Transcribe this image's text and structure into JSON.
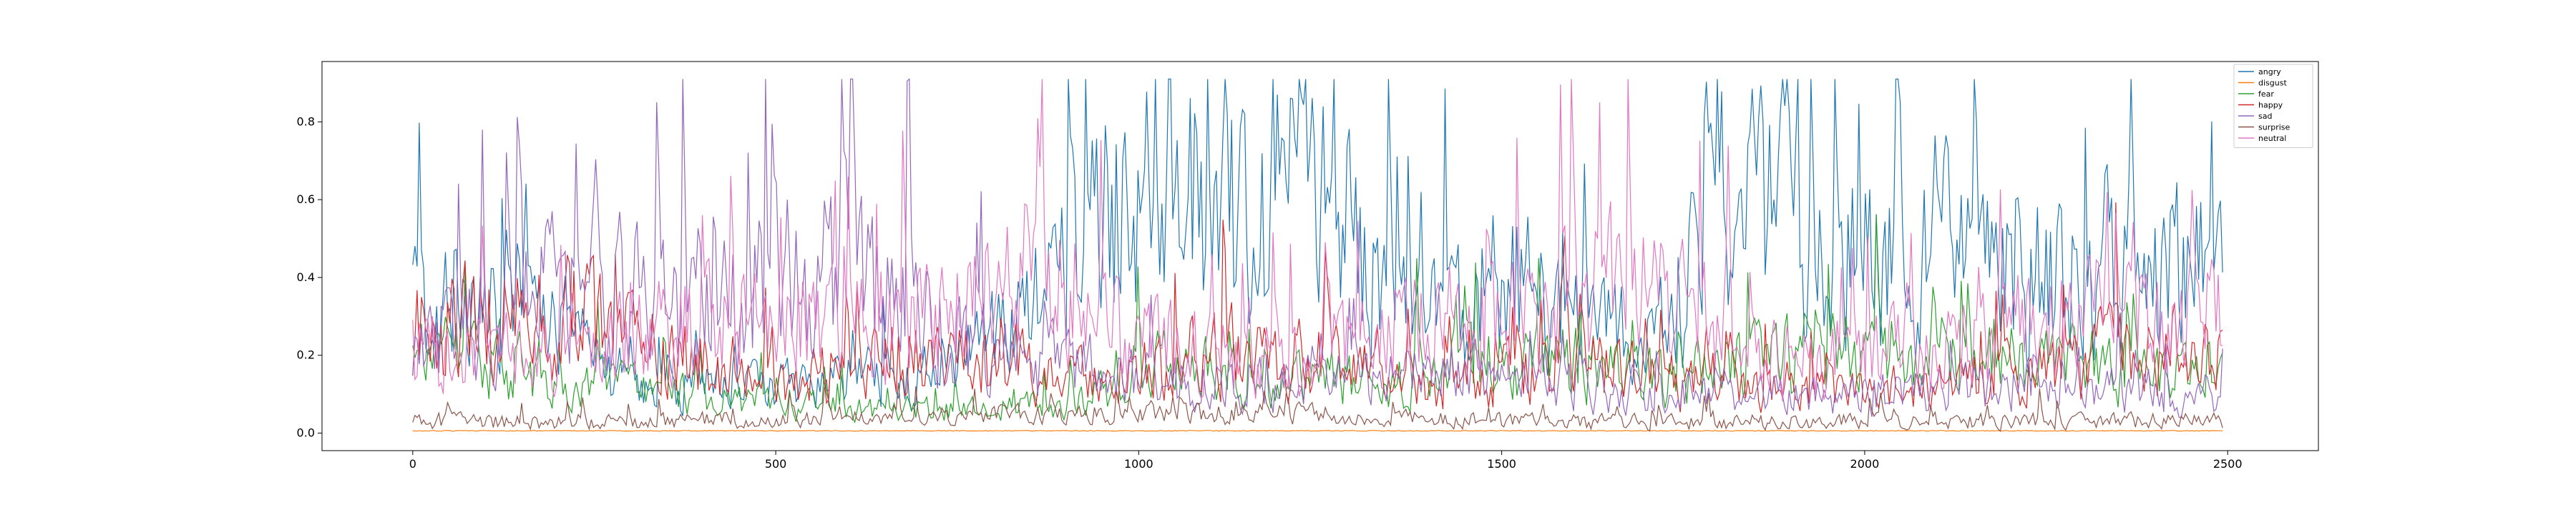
{
  "chart_data": {
    "type": "line",
    "title": "",
    "xlabel": "",
    "ylabel": "",
    "xlim": [
      -125,
      2625
    ],
    "ylim": [
      -0.045,
      0.955
    ],
    "xticks": [
      0,
      500,
      1000,
      1500,
      2000,
      2500
    ],
    "yticks": [
      0.0,
      0.2,
      0.4,
      0.6,
      0.8
    ],
    "ytick_labels": [
      "0.0",
      "0.2",
      "0.4",
      "0.6",
      "0.8"
    ],
    "grid": false,
    "legend_position": "top-right",
    "x_range": [
      0,
      2495
    ],
    "series": [
      {
        "name": "angry",
        "color": "#1f77b4",
        "profile": [
          [
            0,
            0.28
          ],
          [
            150,
            0.35
          ],
          [
            300,
            0.12
          ],
          [
            500,
            0.12
          ],
          [
            700,
            0.15
          ],
          [
            850,
            0.3
          ],
          [
            950,
            0.55
          ],
          [
            1050,
            0.6
          ],
          [
            1150,
            0.55
          ],
          [
            1220,
            0.68
          ],
          [
            1300,
            0.48
          ],
          [
            1400,
            0.28
          ],
          [
            1500,
            0.4
          ],
          [
            1600,
            0.3
          ],
          [
            1700,
            0.22
          ],
          [
            1800,
            0.62
          ],
          [
            1900,
            0.52
          ],
          [
            2000,
            0.45
          ],
          [
            2100,
            0.5
          ],
          [
            2200,
            0.38
          ],
          [
            2300,
            0.42
          ],
          [
            2400,
            0.45
          ],
          [
            2495,
            0.4
          ]
        ]
      },
      {
        "name": "disgust",
        "color": "#ff7f0e",
        "profile": [
          [
            0,
            0.006
          ],
          [
            2495,
            0.006
          ]
        ]
      },
      {
        "name": "fear",
        "color": "#2ca02c",
        "profile": [
          [
            0,
            0.2
          ],
          [
            200,
            0.15
          ],
          [
            400,
            0.09
          ],
          [
            700,
            0.06
          ],
          [
            900,
            0.07
          ],
          [
            1000,
            0.17
          ],
          [
            1200,
            0.14
          ],
          [
            1400,
            0.15
          ],
          [
            1550,
            0.2
          ],
          [
            1700,
            0.14
          ],
          [
            1900,
            0.2
          ],
          [
            2100,
            0.2
          ],
          [
            2300,
            0.17
          ],
          [
            2495,
            0.14
          ]
        ]
      },
      {
        "name": "happy",
        "color": "#d62728",
        "profile": [
          [
            0,
            0.25
          ],
          [
            200,
            0.32
          ],
          [
            300,
            0.22
          ],
          [
            500,
            0.14
          ],
          [
            650,
            0.2
          ],
          [
            800,
            0.18
          ],
          [
            900,
            0.15
          ],
          [
            1100,
            0.2
          ],
          [
            1200,
            0.22
          ],
          [
            1400,
            0.1
          ],
          [
            1600,
            0.2
          ],
          [
            1700,
            0.14
          ],
          [
            1900,
            0.1
          ],
          [
            2100,
            0.12
          ],
          [
            2300,
            0.2
          ],
          [
            2495,
            0.22
          ]
        ]
      },
      {
        "name": "sad",
        "color": "#9467bd",
        "profile": [
          [
            0,
            0.2
          ],
          [
            100,
            0.32
          ],
          [
            250,
            0.38
          ],
          [
            400,
            0.35
          ],
          [
            600,
            0.4
          ],
          [
            700,
            0.3
          ],
          [
            800,
            0.2
          ],
          [
            1000,
            0.14
          ],
          [
            1200,
            0.12
          ],
          [
            1400,
            0.16
          ],
          [
            1600,
            0.12
          ],
          [
            1800,
            0.1
          ],
          [
            2000,
            0.1
          ],
          [
            2200,
            0.12
          ],
          [
            2495,
            0.1
          ]
        ]
      },
      {
        "name": "surprise",
        "color": "#8c564b",
        "profile": [
          [
            0,
            0.03
          ],
          [
            300,
            0.03
          ],
          [
            600,
            0.04
          ],
          [
            900,
            0.05
          ],
          [
            1200,
            0.05
          ],
          [
            1500,
            0.03
          ],
          [
            1800,
            0.03
          ],
          [
            2200,
            0.03
          ],
          [
            2495,
            0.03
          ]
        ]
      },
      {
        "name": "neutral",
        "color": "#e377c2",
        "profile": [
          [
            0,
            0.2
          ],
          [
            200,
            0.2
          ],
          [
            400,
            0.28
          ],
          [
            700,
            0.3
          ],
          [
            900,
            0.38
          ],
          [
            1000,
            0.22
          ],
          [
            1200,
            0.18
          ],
          [
            1350,
            0.28
          ],
          [
            1550,
            0.3
          ],
          [
            1650,
            0.4
          ],
          [
            1750,
            0.3
          ],
          [
            1900,
            0.18
          ],
          [
            2100,
            0.22
          ],
          [
            2300,
            0.3
          ],
          [
            2495,
            0.28
          ]
        ]
      }
    ]
  }
}
